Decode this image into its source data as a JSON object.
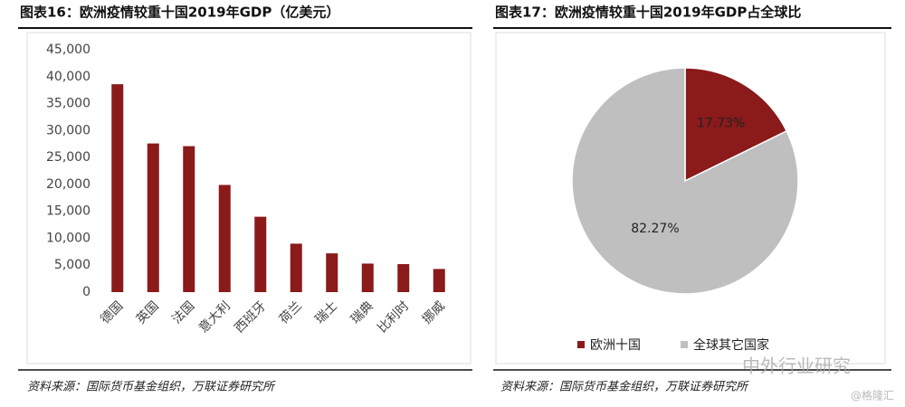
{
  "chart_data": [
    {
      "type": "bar",
      "title": "图表16：欧洲疫情较重十国2019年GDP（亿美元）",
      "categories": [
        "德国",
        "英国",
        "法国",
        "意大利",
        "西班牙",
        "荷兰",
        "瑞士",
        "瑞典",
        "比利时",
        "挪威"
      ],
      "values": [
        38600,
        27600,
        27100,
        19900,
        14000,
        9000,
        7200,
        5300,
        5200,
        4300
      ],
      "color": "#8b1a1a",
      "ylim": [
        0,
        45000
      ],
      "yticks": [
        0,
        {
          "value": 5000,
          "label": "5,000"
        },
        {
          "value": 10000,
          "label": "10,000"
        },
        {
          "value": 15000,
          "label": "15,000"
        },
        {
          "value": 20000,
          "label": "20,000"
        },
        {
          "value": 25000,
          "label": "25,000"
        },
        {
          "value": 30000,
          "label": "30,000"
        },
        {
          "value": 35000,
          "label": "35,000"
        },
        {
          "value": 40000,
          "label": "40,000"
        },
        {
          "value": 45000,
          "label": "45,000"
        }
      ],
      "grid": false
    },
    {
      "type": "pie",
      "title": "图表17：欧洲疫情较重十国2019年GDP占全球比",
      "categories": [
        "欧洲十国",
        "全球其它国家"
      ],
      "values": [
        17.73,
        82.27
      ],
      "value_labels": [
        "17.73%",
        "82.27%"
      ],
      "colors": [
        "#8b1a1a",
        "#bfbfbf"
      ],
      "legend": "bottom"
    }
  ],
  "sources": [
    "资料来源：国际货币基金组织，万联证券研究所",
    "资料来源：国际货币基金组织，万联证券研究所"
  ],
  "watermark": [
    "中外行业研究",
    "@格隆汇"
  ]
}
